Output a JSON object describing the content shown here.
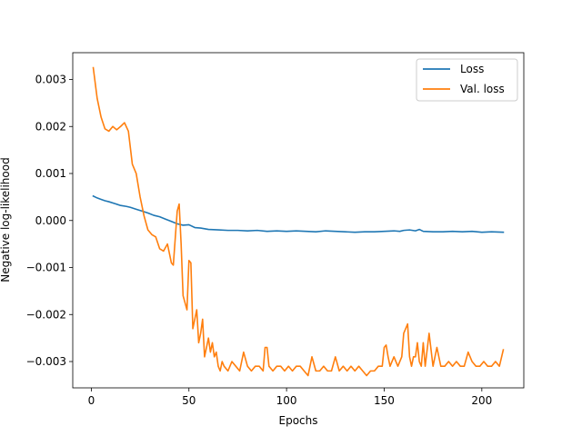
{
  "chart_data": {
    "type": "line",
    "title": "",
    "xlabel": "Epochs",
    "ylabel": "Negative log-likelihood",
    "xlim": [
      -9.5,
      221.5
    ],
    "ylim": [
      -0.00356,
      0.00357
    ],
    "xticks": [
      0,
      50,
      100,
      150,
      200
    ],
    "xtick_labels": [
      "0",
      "50",
      "100",
      "150",
      "200"
    ],
    "yticks": [
      0.003,
      0.002,
      0.001,
      0.0,
      -0.001,
      -0.002,
      -0.003
    ],
    "ytick_labels": [
      "0.003",
      "0.002",
      "0.001",
      "0.000",
      "−0.001",
      "−0.002",
      "−0.003"
    ],
    "grid": false,
    "legend_position": "top-right",
    "series": [
      {
        "name": "Loss",
        "color": "#1f77b4",
        "x": [
          1,
          3,
          5,
          7,
          9,
          12,
          15,
          18,
          20,
          23,
          26,
          29,
          32,
          35,
          38,
          41,
          44,
          47,
          50,
          53,
          56,
          60,
          65,
          70,
          75,
          80,
          85,
          90,
          95,
          100,
          105,
          110,
          115,
          120,
          125,
          130,
          135,
          140,
          145,
          150,
          155,
          158,
          160,
          163,
          166,
          168,
          170,
          175,
          180,
          185,
          190,
          195,
          200,
          205,
          211
        ],
        "y": [
          0.00052,
          0.00048,
          0.00045,
          0.00042,
          0.0004,
          0.00036,
          0.00032,
          0.0003,
          0.00028,
          0.00024,
          0.0002,
          0.00016,
          0.00011,
          8e-05,
          3e-05,
          -2e-05,
          -7e-05,
          -0.0001,
          -9e-05,
          -0.00015,
          -0.00016,
          -0.00019,
          -0.0002,
          -0.00021,
          -0.00021,
          -0.00022,
          -0.00021,
          -0.00023,
          -0.00022,
          -0.00023,
          -0.00022,
          -0.00023,
          -0.00024,
          -0.00022,
          -0.00023,
          -0.00024,
          -0.00025,
          -0.00024,
          -0.00024,
          -0.00023,
          -0.00022,
          -0.00023,
          -0.00021,
          -0.0002,
          -0.00022,
          -0.00019,
          -0.00023,
          -0.00024,
          -0.00024,
          -0.00023,
          -0.00024,
          -0.00023,
          -0.00025,
          -0.00024,
          -0.00025
        ]
      },
      {
        "name": "Val. loss",
        "color": "#ff7f0e",
        "x": [
          1,
          3,
          5,
          7,
          9,
          11,
          13,
          15,
          17,
          19,
          21,
          23,
          25,
          27,
          29,
          31,
          33,
          35,
          37,
          39,
          41,
          42,
          44,
          45,
          46,
          47,
          49,
          50,
          51,
          52,
          53,
          54,
          55,
          56,
          57,
          58,
          60,
          61,
          62,
          63,
          64,
          65,
          66,
          67,
          68,
          70,
          72,
          74,
          76,
          78,
          80,
          82,
          84,
          86,
          88,
          89,
          90,
          91,
          93,
          95,
          97,
          99,
          101,
          103,
          105,
          107,
          109,
          111,
          113,
          115,
          117,
          119,
          121,
          123,
          125,
          127,
          129,
          131,
          133,
          135,
          137,
          139,
          141,
          143,
          145,
          147,
          149,
          150,
          151,
          152,
          153,
          155,
          157,
          159,
          160,
          162,
          163,
          164,
          165,
          166,
          167,
          168,
          169,
          170,
          171,
          173,
          175,
          177,
          179,
          181,
          183,
          185,
          187,
          189,
          191,
          193,
          195,
          197,
          199,
          201,
          203,
          205,
          207,
          209,
          211
        ],
        "y": [
          0.00325,
          0.0026,
          0.0022,
          0.00195,
          0.0019,
          0.002,
          0.00193,
          0.002,
          0.00208,
          0.0019,
          0.0012,
          0.001,
          0.0005,
          0.0001,
          -0.0002,
          -0.0003,
          -0.00035,
          -0.0006,
          -0.00065,
          -0.0005,
          -0.0009,
          -0.00095,
          0.0002,
          0.00035,
          -0.0005,
          -0.0016,
          -0.0019,
          -0.00085,
          -0.0009,
          -0.0023,
          -0.0021,
          -0.0019,
          -0.0026,
          -0.0024,
          -0.0021,
          -0.0029,
          -0.0025,
          -0.0028,
          -0.0026,
          -0.0029,
          -0.0028,
          -0.0031,
          -0.0032,
          -0.003,
          -0.0031,
          -0.0032,
          -0.003,
          -0.0031,
          -0.0032,
          -0.0028,
          -0.0031,
          -0.0032,
          -0.0031,
          -0.0031,
          -0.0032,
          -0.0027,
          -0.0027,
          -0.0031,
          -0.0032,
          -0.0031,
          -0.0031,
          -0.0032,
          -0.0031,
          -0.0032,
          -0.0031,
          -0.0031,
          -0.0032,
          -0.0033,
          -0.0029,
          -0.0032,
          -0.0032,
          -0.0031,
          -0.0032,
          -0.0032,
          -0.0029,
          -0.0032,
          -0.0031,
          -0.0032,
          -0.0031,
          -0.0032,
          -0.0031,
          -0.0032,
          -0.0033,
          -0.0032,
          -0.0032,
          -0.0031,
          -0.0031,
          -0.0027,
          -0.00265,
          -0.0029,
          -0.0031,
          -0.0029,
          -0.0031,
          -0.0029,
          -0.0024,
          -0.0022,
          -0.0029,
          -0.0031,
          -0.0029,
          -0.0029,
          -0.0026,
          -0.003,
          -0.0031,
          -0.0026,
          -0.0031,
          -0.0024,
          -0.0031,
          -0.0027,
          -0.0031,
          -0.0031,
          -0.003,
          -0.0031,
          -0.003,
          -0.0031,
          -0.0031,
          -0.0028,
          -0.003,
          -0.0031,
          -0.0031,
          -0.003,
          -0.0031,
          -0.0031,
          -0.003,
          -0.0031,
          -0.00275
        ]
      }
    ]
  }
}
